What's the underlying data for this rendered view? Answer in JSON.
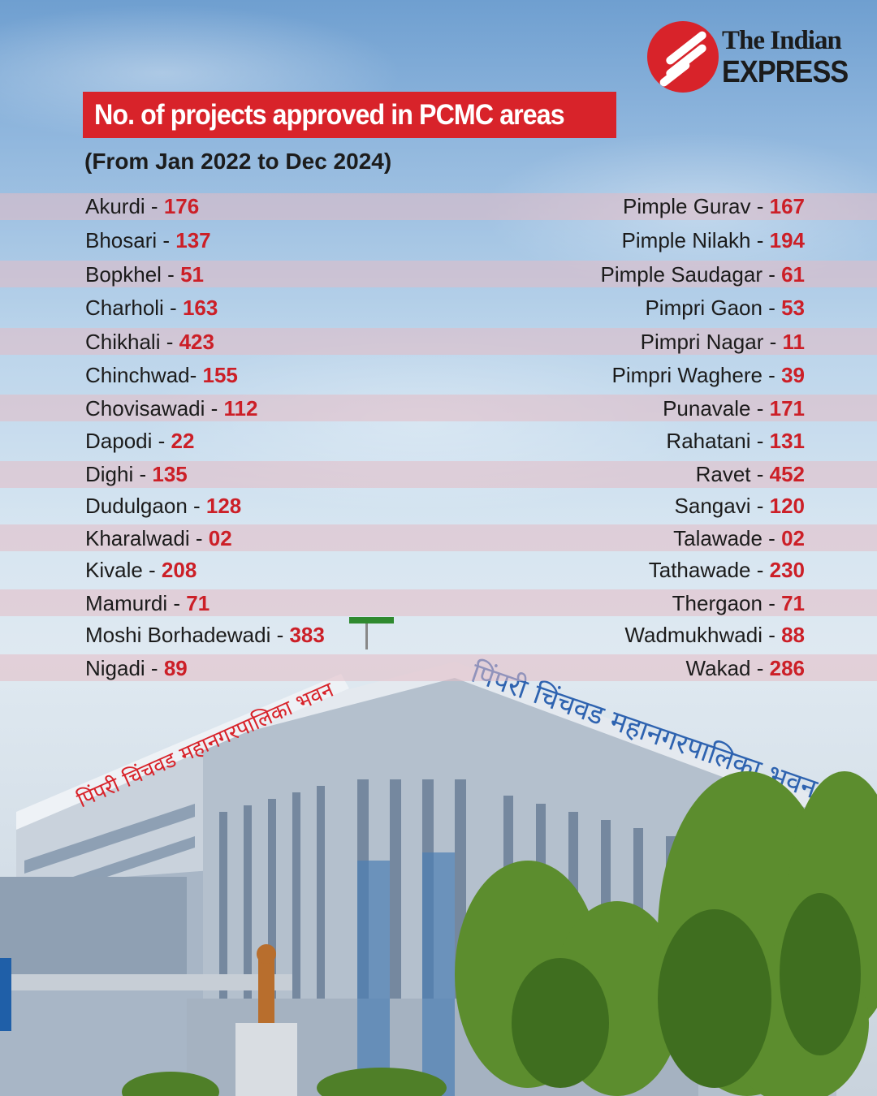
{
  "brand": {
    "line1": "The Indian",
    "line2": "EXPRESS",
    "color": "#d8232a"
  },
  "title": "No. of projects approved in PCMC areas",
  "subtitle": "(From Jan 2022 to Dec 2024)",
  "accent_color": "#cc1f27",
  "left_column": [
    {
      "area": "Akurdi - ",
      "count": "176"
    },
    {
      "area": "Bhosari - ",
      "count": "137"
    },
    {
      "area": "Bopkhel - ",
      "count": "51"
    },
    {
      "area": "Charholi - ",
      "count": "163"
    },
    {
      "area": "Chikhali - ",
      "count": "423"
    },
    {
      "area": "Chinchwad- ",
      "count": "155"
    },
    {
      "area": "Chovisawadi - ",
      "count": "112"
    },
    {
      "area": "Dapodi - ",
      "count": "22"
    },
    {
      "area": "Dighi - ",
      "count": "135"
    },
    {
      "area": "Dudulgaon - ",
      "count": "128"
    },
    {
      "area": "Kharalwadi - ",
      "count": "02"
    },
    {
      "area": "Kivale - ",
      "count": "208"
    },
    {
      "area": "Mamurdi - ",
      "count": "71"
    },
    {
      "area": "Moshi Borhadewadi - ",
      "count": "383"
    },
    {
      "area": "Nigadi - ",
      "count": "89"
    }
  ],
  "right_column": [
    {
      "area": "Pimple Gurav - ",
      "count": "167"
    },
    {
      "area": "Pimple Nilakh - ",
      "count": "194"
    },
    {
      "area": "Pimple Saudagar - ",
      "count": "61"
    },
    {
      "area": "Pimpri Gaon - ",
      "count": "53"
    },
    {
      "area": "Pimpri Nagar - ",
      "count": "11"
    },
    {
      "area": "Pimpri Waghere - ",
      "count": "39"
    },
    {
      "area": "Punavale - ",
      "count": "171"
    },
    {
      "area": "Rahatani - ",
      "count": "131"
    },
    {
      "area": "Ravet - ",
      "count": "452"
    },
    {
      "area": "Sangavi - ",
      "count": "120"
    },
    {
      "area": "Talawade - ",
      "count": "02"
    },
    {
      "area": "Tathawade - ",
      "count": "230"
    },
    {
      "area": "Thergaon - ",
      "count": "71"
    },
    {
      "area": "Wadmukhwadi - ",
      "count": "88"
    },
    {
      "area": "Wakad - ",
      "count": "286"
    }
  ],
  "photo": {
    "building_sign": "पिंपरी चिंचवड महानगरपालिका भवन"
  }
}
